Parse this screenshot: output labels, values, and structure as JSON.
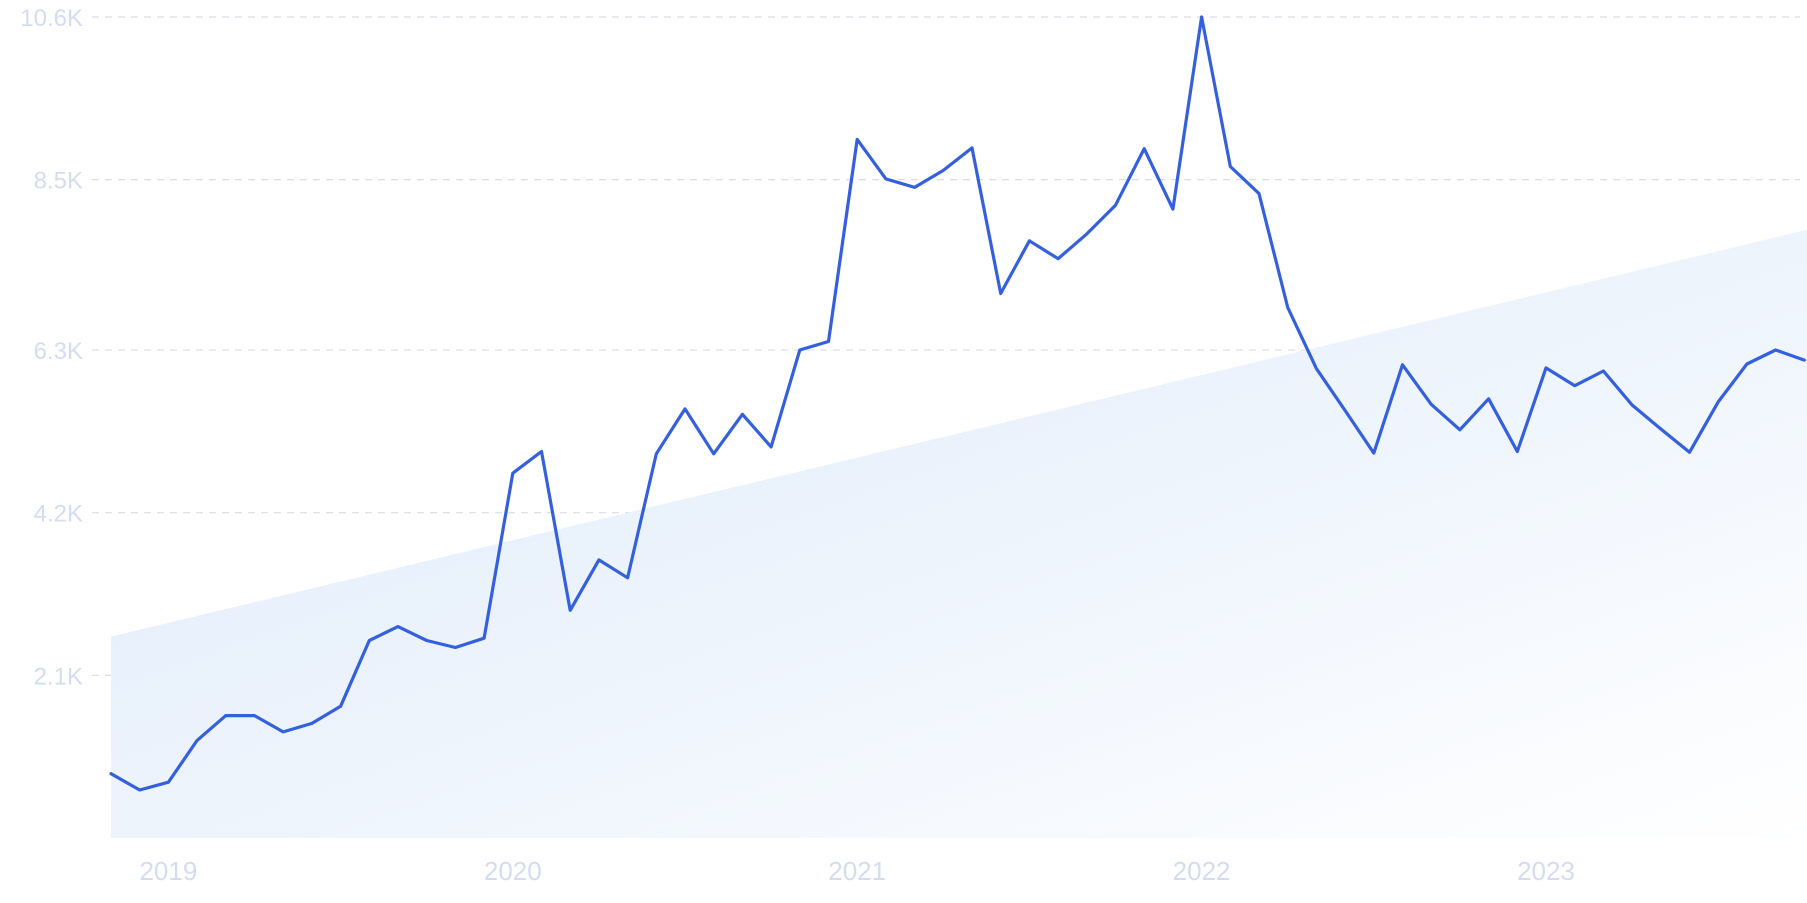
{
  "chart_data": {
    "type": "line",
    "title": "",
    "xlabel": "",
    "ylabel": "",
    "y_ticks": [
      "2.1K",
      "4.2K",
      "6.3K",
      "8.5K",
      "10.6K"
    ],
    "y_tick_values": [
      2100,
      4200,
      6300,
      8500,
      10600
    ],
    "ylim": [
      0,
      10600
    ],
    "x_ticks": [
      "2019",
      "2020",
      "2021",
      "2022",
      "2023"
    ],
    "x_tick_values": [
      "2019-01",
      "2020-01",
      "2021-01",
      "2022-01",
      "2023-01"
    ],
    "grid": "horizontal dashed",
    "colors": {
      "line": "#3460e0",
      "trend_fill_start": "#dce9fa",
      "trend_fill_end": "#ffffff",
      "tick_text": "#d3dcf0",
      "grid": "#d9dde6"
    },
    "trend": {
      "type": "area",
      "start": {
        "x": "2018-11",
        "y": 2600
      },
      "end": {
        "x": "2023-10",
        "y": 7900
      }
    },
    "series": [
      {
        "x": [
          "2018-11",
          "2018-12",
          "2019-01",
          "2019-02",
          "2019-03",
          "2019-04",
          "2019-05",
          "2019-06",
          "2019-07",
          "2019-08",
          "2019-09",
          "2019-10",
          "2019-11",
          "2019-12",
          "2020-01",
          "2020-02",
          "2020-03",
          "2020-04",
          "2020-05",
          "2020-06",
          "2020-07",
          "2020-08",
          "2020-09",
          "2020-10",
          "2020-11",
          "2020-12",
          "2021-01",
          "2021-02",
          "2021-03",
          "2021-04",
          "2021-05",
          "2021-06",
          "2021-07",
          "2021-08",
          "2021-09",
          "2021-10",
          "2021-11",
          "2021-12",
          "2022-01",
          "2022-02",
          "2022-03",
          "2022-04",
          "2022-05",
          "2022-06",
          "2022-07",
          "2022-08",
          "2022-09",
          "2022-10",
          "2022-11",
          "2022-12",
          "2023-01",
          "2023-02",
          "2023-03",
          "2023-04",
          "2023-05",
          "2023-06",
          "2023-07",
          "2023-08",
          "2023-09",
          "2023-10"
        ],
        "values": [
          830,
          620,
          720,
          1260,
          1580,
          1580,
          1370,
          1480,
          1700,
          2550,
          2730,
          2550,
          2460,
          2580,
          4710,
          4990,
          2940,
          3590,
          3360,
          4960,
          5540,
          4960,
          5470,
          5050,
          6300,
          6410,
          9020,
          8510,
          8400,
          8620,
          8910,
          7030,
          7710,
          7480,
          7800,
          8170,
          8900,
          8120,
          10600,
          8670,
          8320,
          6850,
          6060,
          5520,
          4970,
          6110,
          5600,
          5270,
          5670,
          4990,
          6070,
          5840,
          6030,
          5590,
          5280,
          4980,
          5630,
          6120,
          6300,
          6170
        ]
      }
    ]
  }
}
